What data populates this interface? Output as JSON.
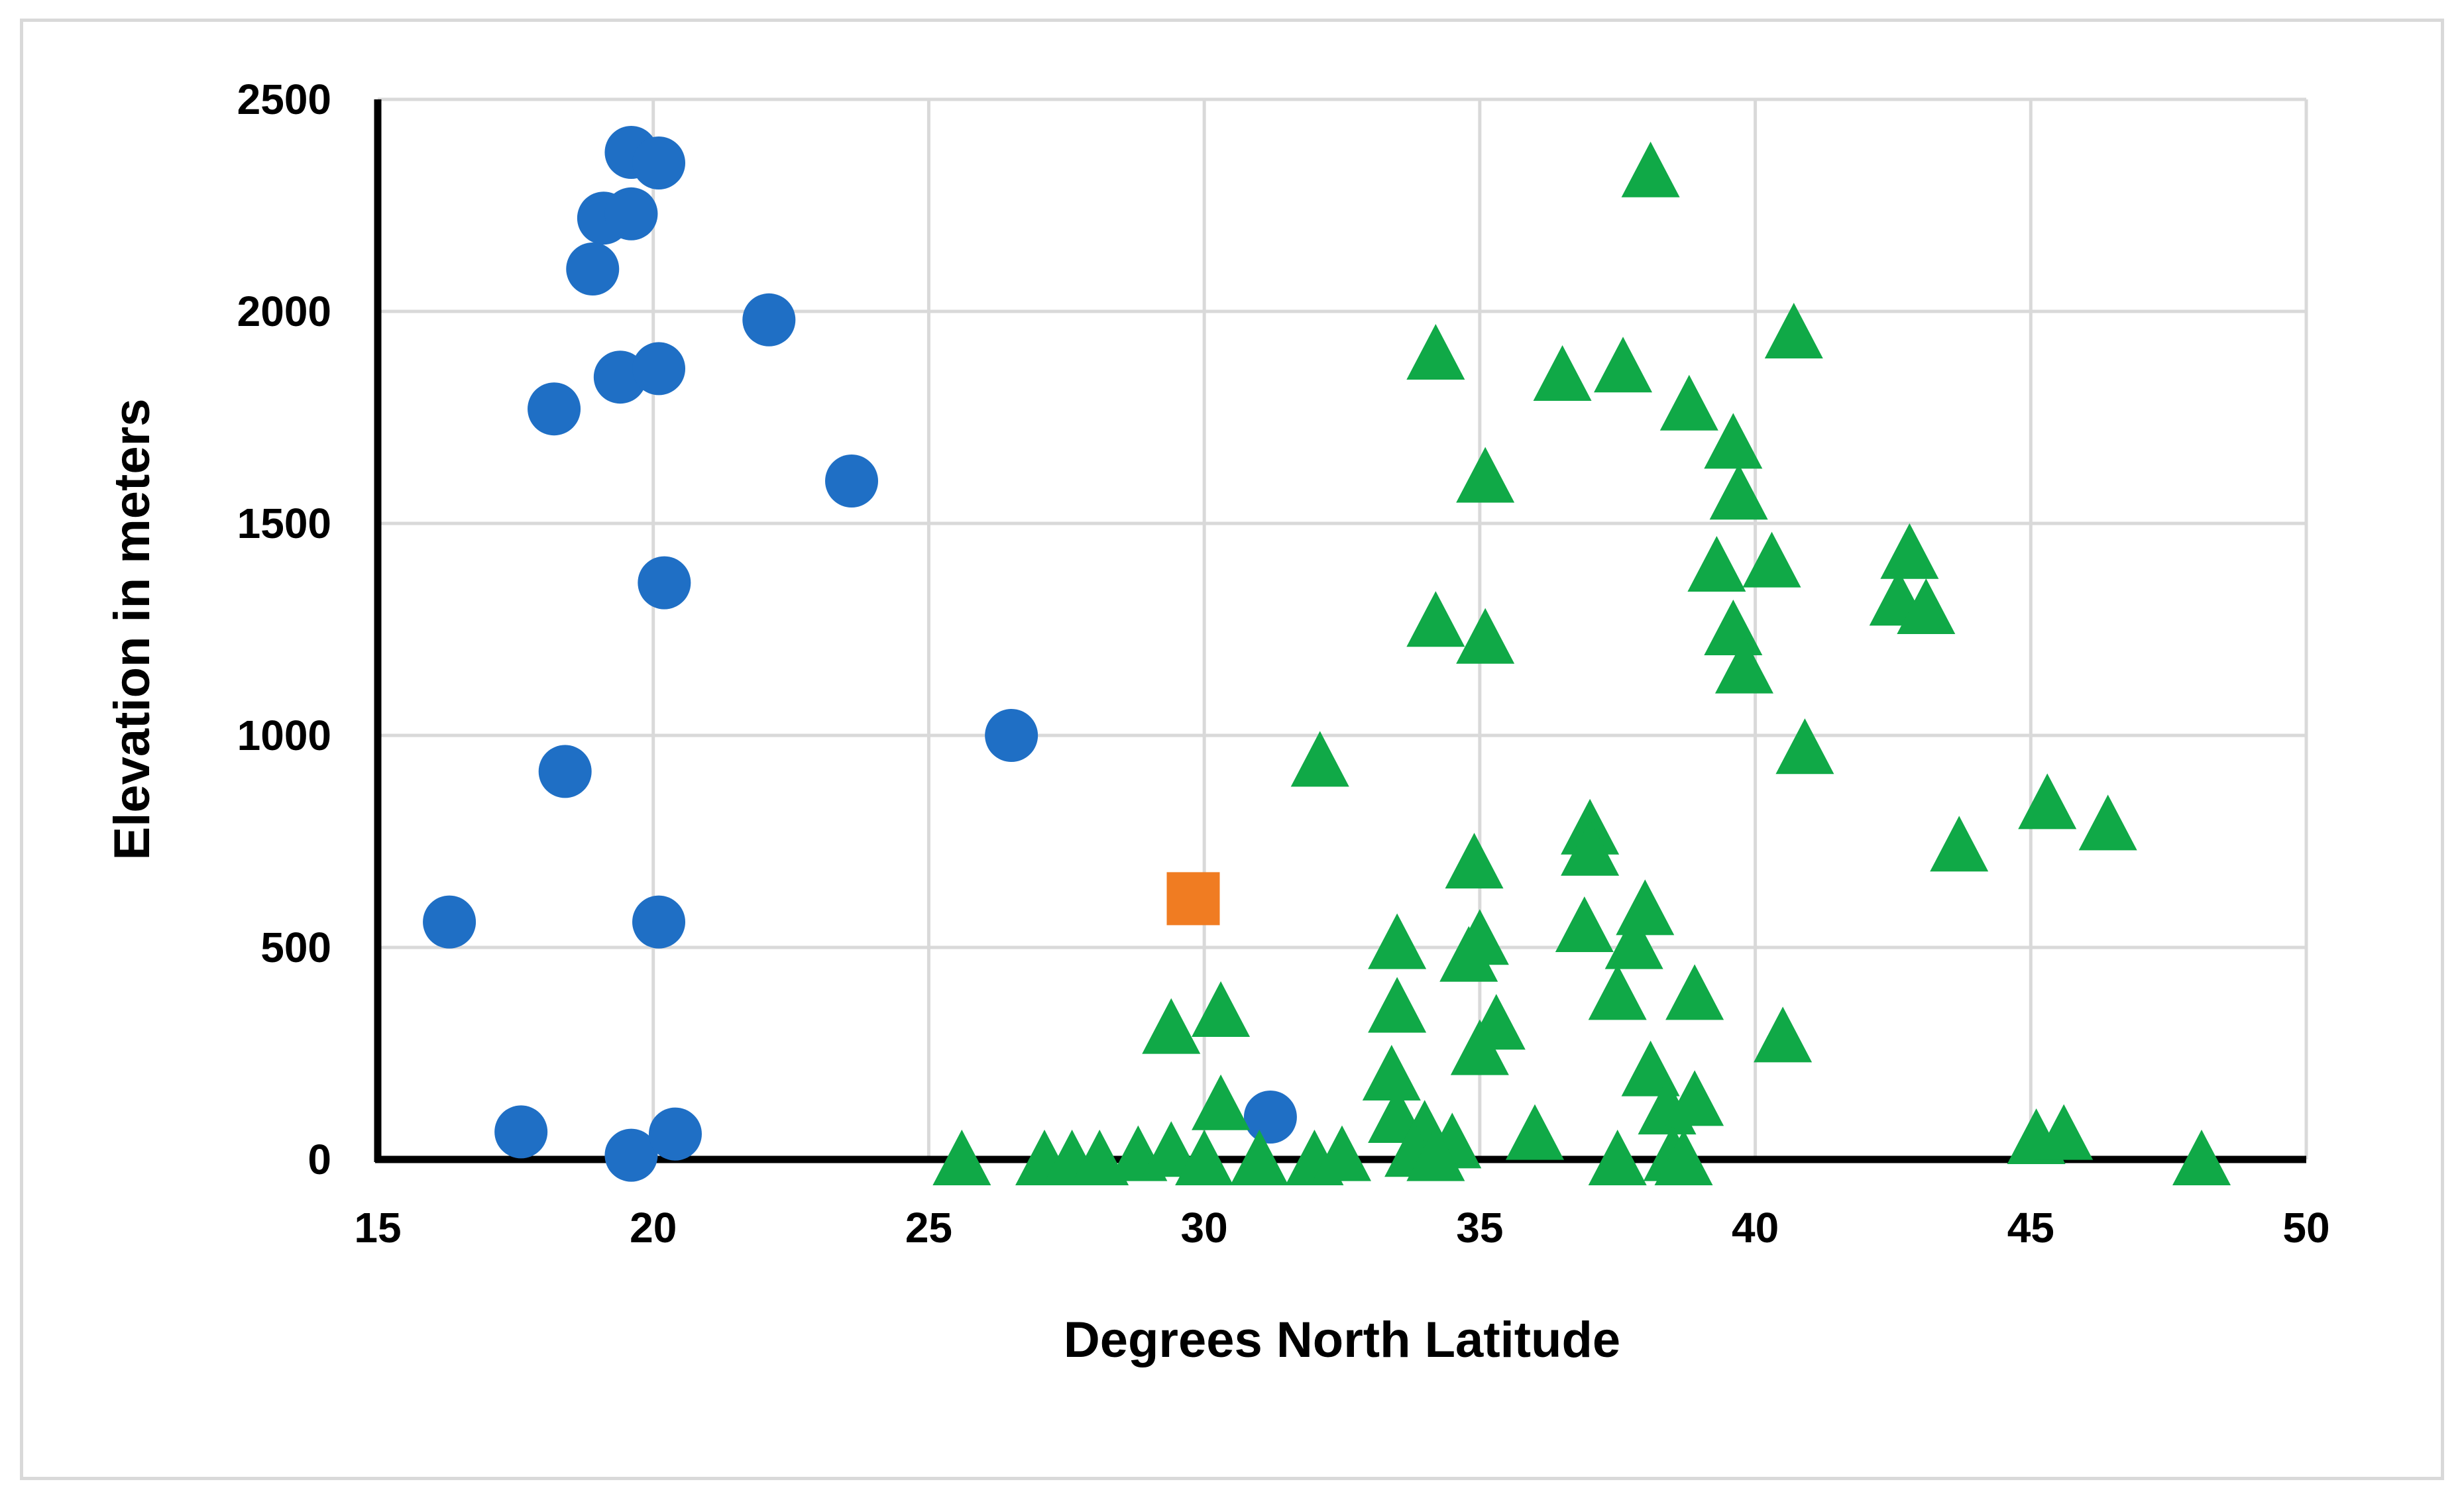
{
  "chart_data": {
    "type": "scatter",
    "title": "",
    "xlabel": "Degrees North Latitude",
    "ylabel": "Elevation in meters",
    "xlim": [
      15,
      50
    ],
    "ylim": [
      0,
      2500
    ],
    "x_ticks": [
      "15",
      "20",
      "25",
      "30",
      "35",
      "40",
      "45",
      "50"
    ],
    "y_ticks": [
      "0",
      "500",
      "1000",
      "1500",
      "2000",
      "2500"
    ],
    "grid": true,
    "legend": "none",
    "series": [
      {
        "marker": "circle",
        "color": "#1f6fc5",
        "points": [
          [
            19.6,
            2375
          ],
          [
            20.1,
            2350
          ],
          [
            19.1,
            2220
          ],
          [
            19.6,
            2230
          ],
          [
            18.9,
            2100
          ],
          [
            22.1,
            1980
          ],
          [
            19.4,
            1845
          ],
          [
            20.1,
            1865
          ],
          [
            18.2,
            1770
          ],
          [
            23.6,
            1600
          ],
          [
            20.2,
            1360
          ],
          [
            26.5,
            1000
          ],
          [
            18.4,
            915
          ],
          [
            16.3,
            560
          ],
          [
            20.1,
            560
          ],
          [
            17.6,
            65
          ],
          [
            19.6,
            10
          ],
          [
            20.4,
            60
          ],
          [
            31.2,
            100
          ]
        ]
      },
      {
        "marker": "square",
        "color": "#f07c22",
        "points": [
          [
            29.8,
            615
          ]
        ]
      },
      {
        "marker": "triangle",
        "color": "#10a947",
        "points": [
          [
            38.1,
            2330
          ],
          [
            40.7,
            1950
          ],
          [
            34.2,
            1900
          ],
          [
            36.5,
            1850
          ],
          [
            37.6,
            1870
          ],
          [
            38.8,
            1780
          ],
          [
            39.6,
            1690
          ],
          [
            35.1,
            1610
          ],
          [
            39.7,
            1570
          ],
          [
            39.3,
            1400
          ],
          [
            40.3,
            1410
          ],
          [
            42.8,
            1430
          ],
          [
            42.6,
            1320
          ],
          [
            43.1,
            1300
          ],
          [
            34.2,
            1270
          ],
          [
            35.1,
            1230
          ],
          [
            39.6,
            1250
          ],
          [
            39.8,
            1160
          ],
          [
            32.1,
            940
          ],
          [
            40.9,
            970
          ],
          [
            45.3,
            840
          ],
          [
            46.4,
            790
          ],
          [
            43.7,
            740
          ],
          [
            37.0,
            780
          ],
          [
            37.0,
            730
          ],
          [
            34.9,
            700
          ],
          [
            36.9,
            550
          ],
          [
            38.0,
            590
          ],
          [
            37.8,
            510
          ],
          [
            33.5,
            510
          ],
          [
            34.8,
            480
          ],
          [
            35.0,
            520
          ],
          [
            33.5,
            360
          ],
          [
            37.5,
            390
          ],
          [
            38.9,
            390
          ],
          [
            35.3,
            320
          ],
          [
            35.0,
            260
          ],
          [
            30.3,
            350
          ],
          [
            29.4,
            310
          ],
          [
            40.5,
            290
          ],
          [
            33.4,
            200
          ],
          [
            38.1,
            210
          ],
          [
            38.4,
            120
          ],
          [
            38.9,
            140
          ],
          [
            30.3,
            130
          ],
          [
            33.5,
            100
          ],
          [
            34.0,
            70
          ],
          [
            34.5,
            40
          ],
          [
            36.0,
            60
          ],
          [
            45.1,
            50
          ],
          [
            45.6,
            60
          ],
          [
            25.6,
            0
          ],
          [
            27.1,
            0
          ],
          [
            27.6,
            0
          ],
          [
            28.1,
            0
          ],
          [
            28.8,
            10
          ],
          [
            29.4,
            20
          ],
          [
            30.0,
            0
          ],
          [
            31.0,
            0
          ],
          [
            32.0,
            0
          ],
          [
            32.5,
            10
          ],
          [
            33.8,
            20
          ],
          [
            34.2,
            10
          ],
          [
            37.5,
            0
          ],
          [
            38.5,
            10
          ],
          [
            38.7,
            0
          ],
          [
            48.1,
            0
          ]
        ]
      }
    ]
  }
}
